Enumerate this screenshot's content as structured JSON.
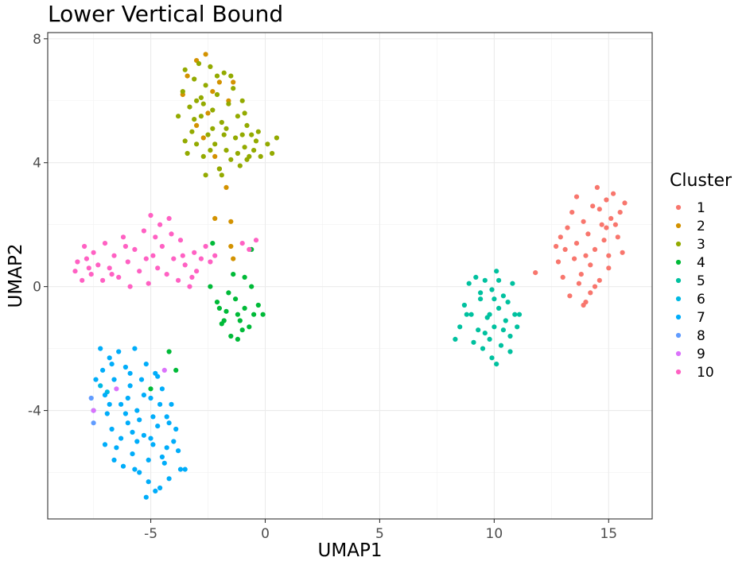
{
  "chart_data": {
    "type": "scatter",
    "title": "Lower Vertical Bound",
    "xlabel": "UMAP1",
    "ylabel": "UMAP2",
    "xlim": [
      -9.5,
      16.9
    ],
    "ylim": [
      -7.5,
      8.2
    ],
    "xticks": [
      -5,
      0,
      5,
      10,
      15
    ],
    "yticks": [
      -4,
      0,
      4,
      8
    ],
    "xtick_labels": [
      "-5",
      "0",
      "5",
      "10",
      "15"
    ],
    "ytick_labels": [
      "-4",
      "0",
      "4",
      "8"
    ],
    "grid": true,
    "legend": {
      "title": "Cluster",
      "position": "right"
    },
    "series": [
      {
        "name": "1",
        "color": "#F8766D",
        "points": [
          [
            11.8,
            0.45
          ],
          [
            12.8,
            0.8
          ],
          [
            13.0,
            0.3
          ],
          [
            13.2,
            1.9
          ],
          [
            13.4,
            2.4
          ],
          [
            13.6,
            1.4
          ],
          [
            13.7,
            0.1
          ],
          [
            13.9,
            2.1
          ],
          [
            14.0,
            -0.5
          ],
          [
            14.1,
            1.7
          ],
          [
            14.2,
            0.7
          ],
          [
            14.3,
            2.6
          ],
          [
            14.4,
            1.2
          ],
          [
            14.5,
            3.2
          ],
          [
            14.6,
            0.2
          ],
          [
            14.7,
            2.0
          ],
          [
            14.8,
            1.5
          ],
          [
            14.9,
            2.8
          ],
          [
            15.0,
            1.0
          ],
          [
            15.1,
            2.2
          ],
          [
            15.2,
            3.0
          ],
          [
            15.4,
            1.6
          ],
          [
            15.5,
            2.4
          ],
          [
            15.6,
            1.1
          ],
          [
            15.7,
            2.7
          ],
          [
            13.1,
            1.2
          ],
          [
            13.5,
            0.9
          ],
          [
            13.8,
            0.4
          ],
          [
            14.2,
            -0.2
          ],
          [
            12.9,
            1.6
          ],
          [
            14.6,
            2.5
          ],
          [
            13.3,
            -0.3
          ],
          [
            14.0,
            1.0
          ],
          [
            14.9,
            1.9
          ],
          [
            15.3,
            2.0
          ],
          [
            13.6,
            2.9
          ],
          [
            14.4,
            0.0
          ],
          [
            12.7,
            1.3
          ],
          [
            15.0,
            0.6
          ],
          [
            13.9,
            -0.6
          ]
        ]
      },
      {
        "name": "2",
        "color": "#D39200",
        "points": [
          [
            -3.4,
            6.8
          ],
          [
            -3.0,
            7.3
          ],
          [
            -2.6,
            7.5
          ],
          [
            -2.3,
            6.3
          ],
          [
            -2.0,
            6.6
          ],
          [
            -3.6,
            6.2
          ],
          [
            -3.0,
            5.2
          ],
          [
            -2.7,
            4.8
          ],
          [
            -2.2,
            4.2
          ],
          [
            -2.0,
            3.8
          ],
          [
            -1.7,
            3.2
          ],
          [
            -2.2,
            2.2
          ],
          [
            -1.5,
            2.1
          ],
          [
            -1.5,
            1.3
          ],
          [
            -1.4,
            0.9
          ],
          [
            -1.6,
            6.0
          ],
          [
            -1.4,
            6.6
          ],
          [
            -2.5,
            5.6
          ]
        ]
      },
      {
        "name": "3",
        "color": "#93AA00",
        "points": [
          [
            -3.8,
            5.5
          ],
          [
            -3.6,
            6.3
          ],
          [
            -3.5,
            7.0
          ],
          [
            -3.3,
            5.8
          ],
          [
            -3.2,
            5.0
          ],
          [
            -3.1,
            6.7
          ],
          [
            -3.0,
            4.6
          ],
          [
            -2.9,
            7.2
          ],
          [
            -2.8,
            5.5
          ],
          [
            -2.7,
            4.2
          ],
          [
            -2.6,
            6.5
          ],
          [
            -2.5,
            4.9
          ],
          [
            -2.4,
            7.1
          ],
          [
            -2.3,
            5.7
          ],
          [
            -2.2,
            4.6
          ],
          [
            -2.1,
            6.2
          ],
          [
            -2.0,
            3.8
          ],
          [
            -1.9,
            5.3
          ],
          [
            -1.8,
            6.9
          ],
          [
            -1.7,
            4.4
          ],
          [
            -1.6,
            5.9
          ],
          [
            -1.5,
            4.1
          ],
          [
            -1.4,
            6.4
          ],
          [
            -1.3,
            4.8
          ],
          [
            -1.2,
            5.5
          ],
          [
            -1.1,
            3.9
          ],
          [
            -1.0,
            6.0
          ],
          [
            -0.9,
            4.5
          ],
          [
            -0.8,
            5.2
          ],
          [
            -0.7,
            4.2
          ],
          [
            -0.6,
            4.9
          ],
          [
            -0.5,
            4.4
          ],
          [
            -0.4,
            4.7
          ],
          [
            -0.3,
            5.0
          ],
          [
            -0.2,
            4.2
          ],
          [
            0.1,
            4.6
          ],
          [
            0.3,
            4.3
          ],
          [
            0.5,
            4.8
          ],
          [
            -3.4,
            4.3
          ],
          [
            -2.6,
            3.6
          ],
          [
            -1.9,
            3.6
          ],
          [
            -1.2,
            4.3
          ],
          [
            -0.8,
            4.1
          ],
          [
            -2.8,
            6.1
          ],
          [
            -3.1,
            5.4
          ],
          [
            -2.1,
            6.8
          ],
          [
            -1.7,
            5.1
          ],
          [
            -2.4,
            4.4
          ],
          [
            -0.9,
            5.6
          ],
          [
            -3.5,
            4.7
          ],
          [
            -2.3,
            5.1
          ],
          [
            -1.5,
            6.8
          ],
          [
            -1.0,
            4.9
          ],
          [
            -2.7,
            5.9
          ],
          [
            -3.0,
            6.0
          ],
          [
            -1.8,
            4.9
          ]
        ]
      },
      {
        "name": "4",
        "color": "#00BA38",
        "points": [
          [
            -2.3,
            1.4
          ],
          [
            -2.4,
            0.0
          ],
          [
            -2.1,
            -0.5
          ],
          [
            -1.9,
            -1.2
          ],
          [
            -1.7,
            -0.8
          ],
          [
            -1.5,
            -1.6
          ],
          [
            -1.3,
            -0.4
          ],
          [
            -1.1,
            -1.1
          ],
          [
            -0.9,
            -0.7
          ],
          [
            -0.7,
            -1.3
          ],
          [
            -0.5,
            -0.9
          ],
          [
            -0.3,
            -0.6
          ],
          [
            -0.1,
            -0.9
          ],
          [
            -1.6,
            -0.2
          ],
          [
            -1.2,
            -0.9
          ],
          [
            -1.4,
            0.4
          ],
          [
            -1.8,
            -1.1
          ],
          [
            -0.6,
            0.0
          ],
          [
            -1.0,
            -1.4
          ],
          [
            -0.9,
            0.3
          ],
          [
            -4.2,
            -2.1
          ],
          [
            -3.9,
            -2.7
          ],
          [
            -5.0,
            -3.3
          ],
          [
            -0.6,
            1.2
          ],
          [
            -2.0,
            -0.7
          ],
          [
            -1.2,
            -1.7
          ]
        ]
      },
      {
        "name": "5",
        "color": "#00C19F",
        "points": [
          [
            8.3,
            -1.7
          ],
          [
            8.5,
            -1.3
          ],
          [
            8.7,
            -0.6
          ],
          [
            8.9,
            0.1
          ],
          [
            9.0,
            -0.9
          ],
          [
            9.2,
            0.3
          ],
          [
            9.3,
            -1.4
          ],
          [
            9.4,
            -0.4
          ],
          [
            9.5,
            -2.0
          ],
          [
            9.6,
            0.2
          ],
          [
            9.7,
            -1.0
          ],
          [
            9.8,
            -1.7
          ],
          [
            9.9,
            -0.1
          ],
          [
            10.0,
            -1.3
          ],
          [
            10.1,
            0.5
          ],
          [
            10.2,
            -0.7
          ],
          [
            10.3,
            -1.9
          ],
          [
            10.4,
            -0.3
          ],
          [
            10.5,
            -1.1
          ],
          [
            10.6,
            -0.5
          ],
          [
            10.7,
            -1.6
          ],
          [
            10.8,
            0.1
          ],
          [
            10.9,
            -0.9
          ],
          [
            11.0,
            -1.3
          ],
          [
            11.1,
            -0.9
          ],
          [
            10.1,
            -2.5
          ],
          [
            9.4,
            -0.2
          ],
          [
            9.6,
            -1.5
          ],
          [
            10.0,
            -0.4
          ],
          [
            9.8,
            -0.9
          ],
          [
            10.4,
            -1.4
          ],
          [
            9.1,
            -1.8
          ],
          [
            10.7,
            -2.1
          ],
          [
            10.2,
            0.2
          ],
          [
            8.8,
            -0.9
          ],
          [
            9.9,
            -2.3
          ]
        ]
      },
      {
        "name": "6",
        "color": "#00B9E3",
        "points": [
          [
            -7.2,
            -3.2
          ],
          [
            -6.9,
            -3.4
          ]
        ]
      },
      {
        "name": "7",
        "color": "#00ADFA",
        "points": [
          [
            -7.2,
            -2.0
          ],
          [
            -7.1,
            -2.7
          ],
          [
            -7.0,
            -3.5
          ],
          [
            -6.9,
            -4.1
          ],
          [
            -6.8,
            -2.3
          ],
          [
            -6.7,
            -4.6
          ],
          [
            -6.6,
            -3.0
          ],
          [
            -6.5,
            -5.2
          ],
          [
            -6.4,
            -2.1
          ],
          [
            -6.3,
            -3.8
          ],
          [
            -6.2,
            -5.8
          ],
          [
            -6.1,
            -2.6
          ],
          [
            -6.0,
            -4.4
          ],
          [
            -5.9,
            -3.2
          ],
          [
            -5.8,
            -5.4
          ],
          [
            -5.7,
            -2.0
          ],
          [
            -5.6,
            -4.0
          ],
          [
            -5.5,
            -6.0
          ],
          [
            -5.4,
            -3.0
          ],
          [
            -5.3,
            -4.8
          ],
          [
            -5.2,
            -2.5
          ],
          [
            -5.1,
            -6.3
          ],
          [
            -5.0,
            -3.6
          ],
          [
            -4.9,
            -5.1
          ],
          [
            -4.8,
            -2.8
          ],
          [
            -4.7,
            -4.5
          ],
          [
            -4.6,
            -6.5
          ],
          [
            -4.5,
            -3.3
          ],
          [
            -4.4,
            -5.7
          ],
          [
            -4.3,
            -4.2
          ],
          [
            -4.2,
            -6.2
          ],
          [
            -4.1,
            -3.8
          ],
          [
            -4.0,
            -5.0
          ],
          [
            -3.9,
            -4.6
          ],
          [
            -3.8,
            -5.3
          ],
          [
            -3.7,
            -5.9
          ],
          [
            -3.5,
            -5.9
          ],
          [
            -7.4,
            -3.0
          ],
          [
            -7.5,
            -4.0
          ],
          [
            -7.0,
            -5.1
          ],
          [
            -6.6,
            -5.6
          ],
          [
            -5.7,
            -5.9
          ],
          [
            -5.2,
            -6.8
          ],
          [
            -4.8,
            -6.6
          ],
          [
            -6.8,
            -3.8
          ],
          [
            -6.0,
            -3.6
          ],
          [
            -5.5,
            -4.3
          ],
          [
            -5.0,
            -4.9
          ],
          [
            -4.6,
            -3.8
          ],
          [
            -4.3,
            -5.2
          ],
          [
            -6.3,
            -4.9
          ],
          [
            -5.9,
            -2.8
          ],
          [
            -5.3,
            -3.5
          ],
          [
            -4.9,
            -4.2
          ],
          [
            -4.5,
            -5.5
          ],
          [
            -6.7,
            -2.5
          ],
          [
            -5.6,
            -5.0
          ],
          [
            -4.2,
            -4.4
          ],
          [
            -6.1,
            -4.1
          ],
          [
            -5.8,
            -4.7
          ],
          [
            -5.1,
            -5.6
          ],
          [
            -4.7,
            -2.9
          ]
        ]
      },
      {
        "name": "8",
        "color": "#619CFF",
        "points": [
          [
            -7.6,
            -3.6
          ],
          [
            -7.5,
            -4.4
          ]
        ]
      },
      {
        "name": "9",
        "color": "#DB72FB",
        "points": [
          [
            -7.5,
            -4.0
          ],
          [
            -4.4,
            -2.7
          ],
          [
            -6.5,
            -3.3
          ]
        ]
      },
      {
        "name": "10",
        "color": "#FF61C3",
        "points": [
          [
            -8.3,
            0.5
          ],
          [
            -8.2,
            0.8
          ],
          [
            -8.0,
            0.2
          ],
          [
            -7.9,
            1.3
          ],
          [
            -7.8,
            0.9
          ],
          [
            -7.6,
            0.4
          ],
          [
            -7.5,
            1.1
          ],
          [
            -7.3,
            0.7
          ],
          [
            -7.1,
            0.2
          ],
          [
            -7.0,
            1.4
          ],
          [
            -6.8,
            0.6
          ],
          [
            -6.6,
            1.0
          ],
          [
            -6.4,
            0.3
          ],
          [
            -6.2,
            1.6
          ],
          [
            -6.0,
            0.8
          ],
          [
            -5.9,
            0.0
          ],
          [
            -5.7,
            1.2
          ],
          [
            -5.5,
            0.5
          ],
          [
            -5.3,
            1.8
          ],
          [
            -5.1,
            0.1
          ],
          [
            -5.0,
            2.3
          ],
          [
            -4.9,
            1.0
          ],
          [
            -4.7,
            0.6
          ],
          [
            -4.6,
            2.0
          ],
          [
            -4.5,
            1.3
          ],
          [
            -4.3,
            0.4
          ],
          [
            -4.1,
            1.7
          ],
          [
            -4.0,
            0.9
          ],
          [
            -3.8,
            0.2
          ],
          [
            -3.7,
            1.5
          ],
          [
            -3.5,
            0.7
          ],
          [
            -3.3,
            0.0
          ],
          [
            -3.1,
            1.1
          ],
          [
            -3.0,
            0.5
          ],
          [
            -2.8,
            0.9
          ],
          [
            -2.6,
            1.3
          ],
          [
            -2.4,
            0.8
          ],
          [
            -2.2,
            1.0
          ],
          [
            -1.0,
            1.4
          ],
          [
            -0.7,
            1.2
          ],
          [
            -0.4,
            1.5
          ],
          [
            -6.7,
            0.4
          ],
          [
            -5.2,
            0.9
          ],
          [
            -4.2,
            2.2
          ],
          [
            -3.6,
            1.0
          ],
          [
            -7.7,
            0.6
          ],
          [
            -4.8,
            1.6
          ],
          [
            -6.1,
            1.3
          ],
          [
            -3.2,
            0.3
          ]
        ]
      }
    ]
  }
}
